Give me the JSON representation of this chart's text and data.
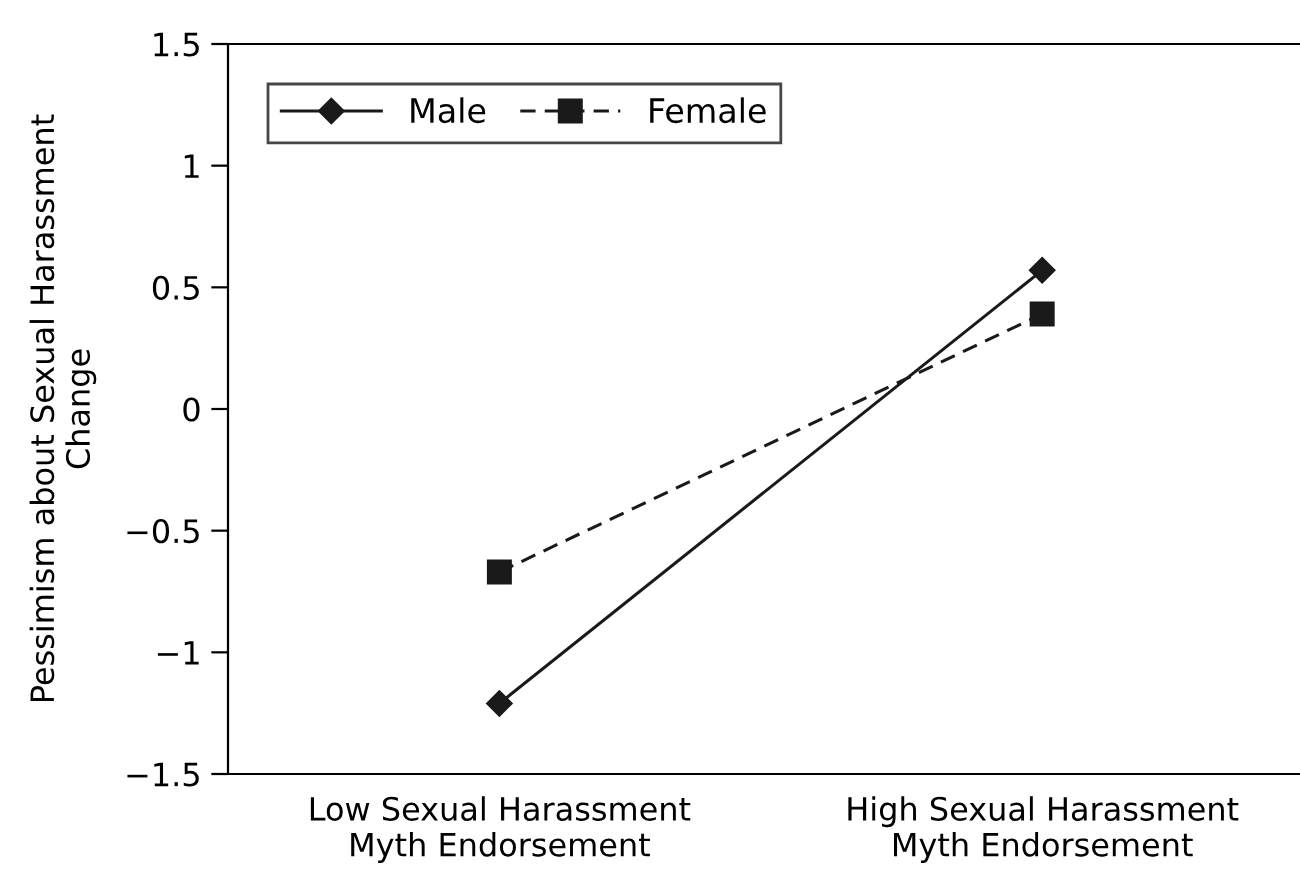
{
  "chart_data": {
    "type": "line",
    "ylabel": "Pessimism about Sexual Harassment\nChange",
    "categories": [
      "Low Sexual Harassment\nMyth Endorsement",
      "High Sexual Harassment\nMyth Endorsement"
    ],
    "series": [
      {
        "name": "Male",
        "color": "#1a1a1a",
        "values": [
          -1.21,
          0.57
        ],
        "marker": "diamond",
        "line_style": "solid"
      },
      {
        "name": "Female",
        "color": "#1a1a1a",
        "values": [
          -0.67,
          0.39
        ],
        "marker": "square",
        "line_style": "dashed"
      }
    ],
    "ylim": [
      -1.5,
      1.5
    ],
    "yticks": [
      {
        "value": -1.5,
        "label": "−1.5"
      },
      {
        "value": -1,
        "label": "−1"
      },
      {
        "value": -0.5,
        "label": "−0.5"
      },
      0,
      0.5,
      1,
      1.5
    ],
    "grid": false,
    "legend": "top left"
  }
}
